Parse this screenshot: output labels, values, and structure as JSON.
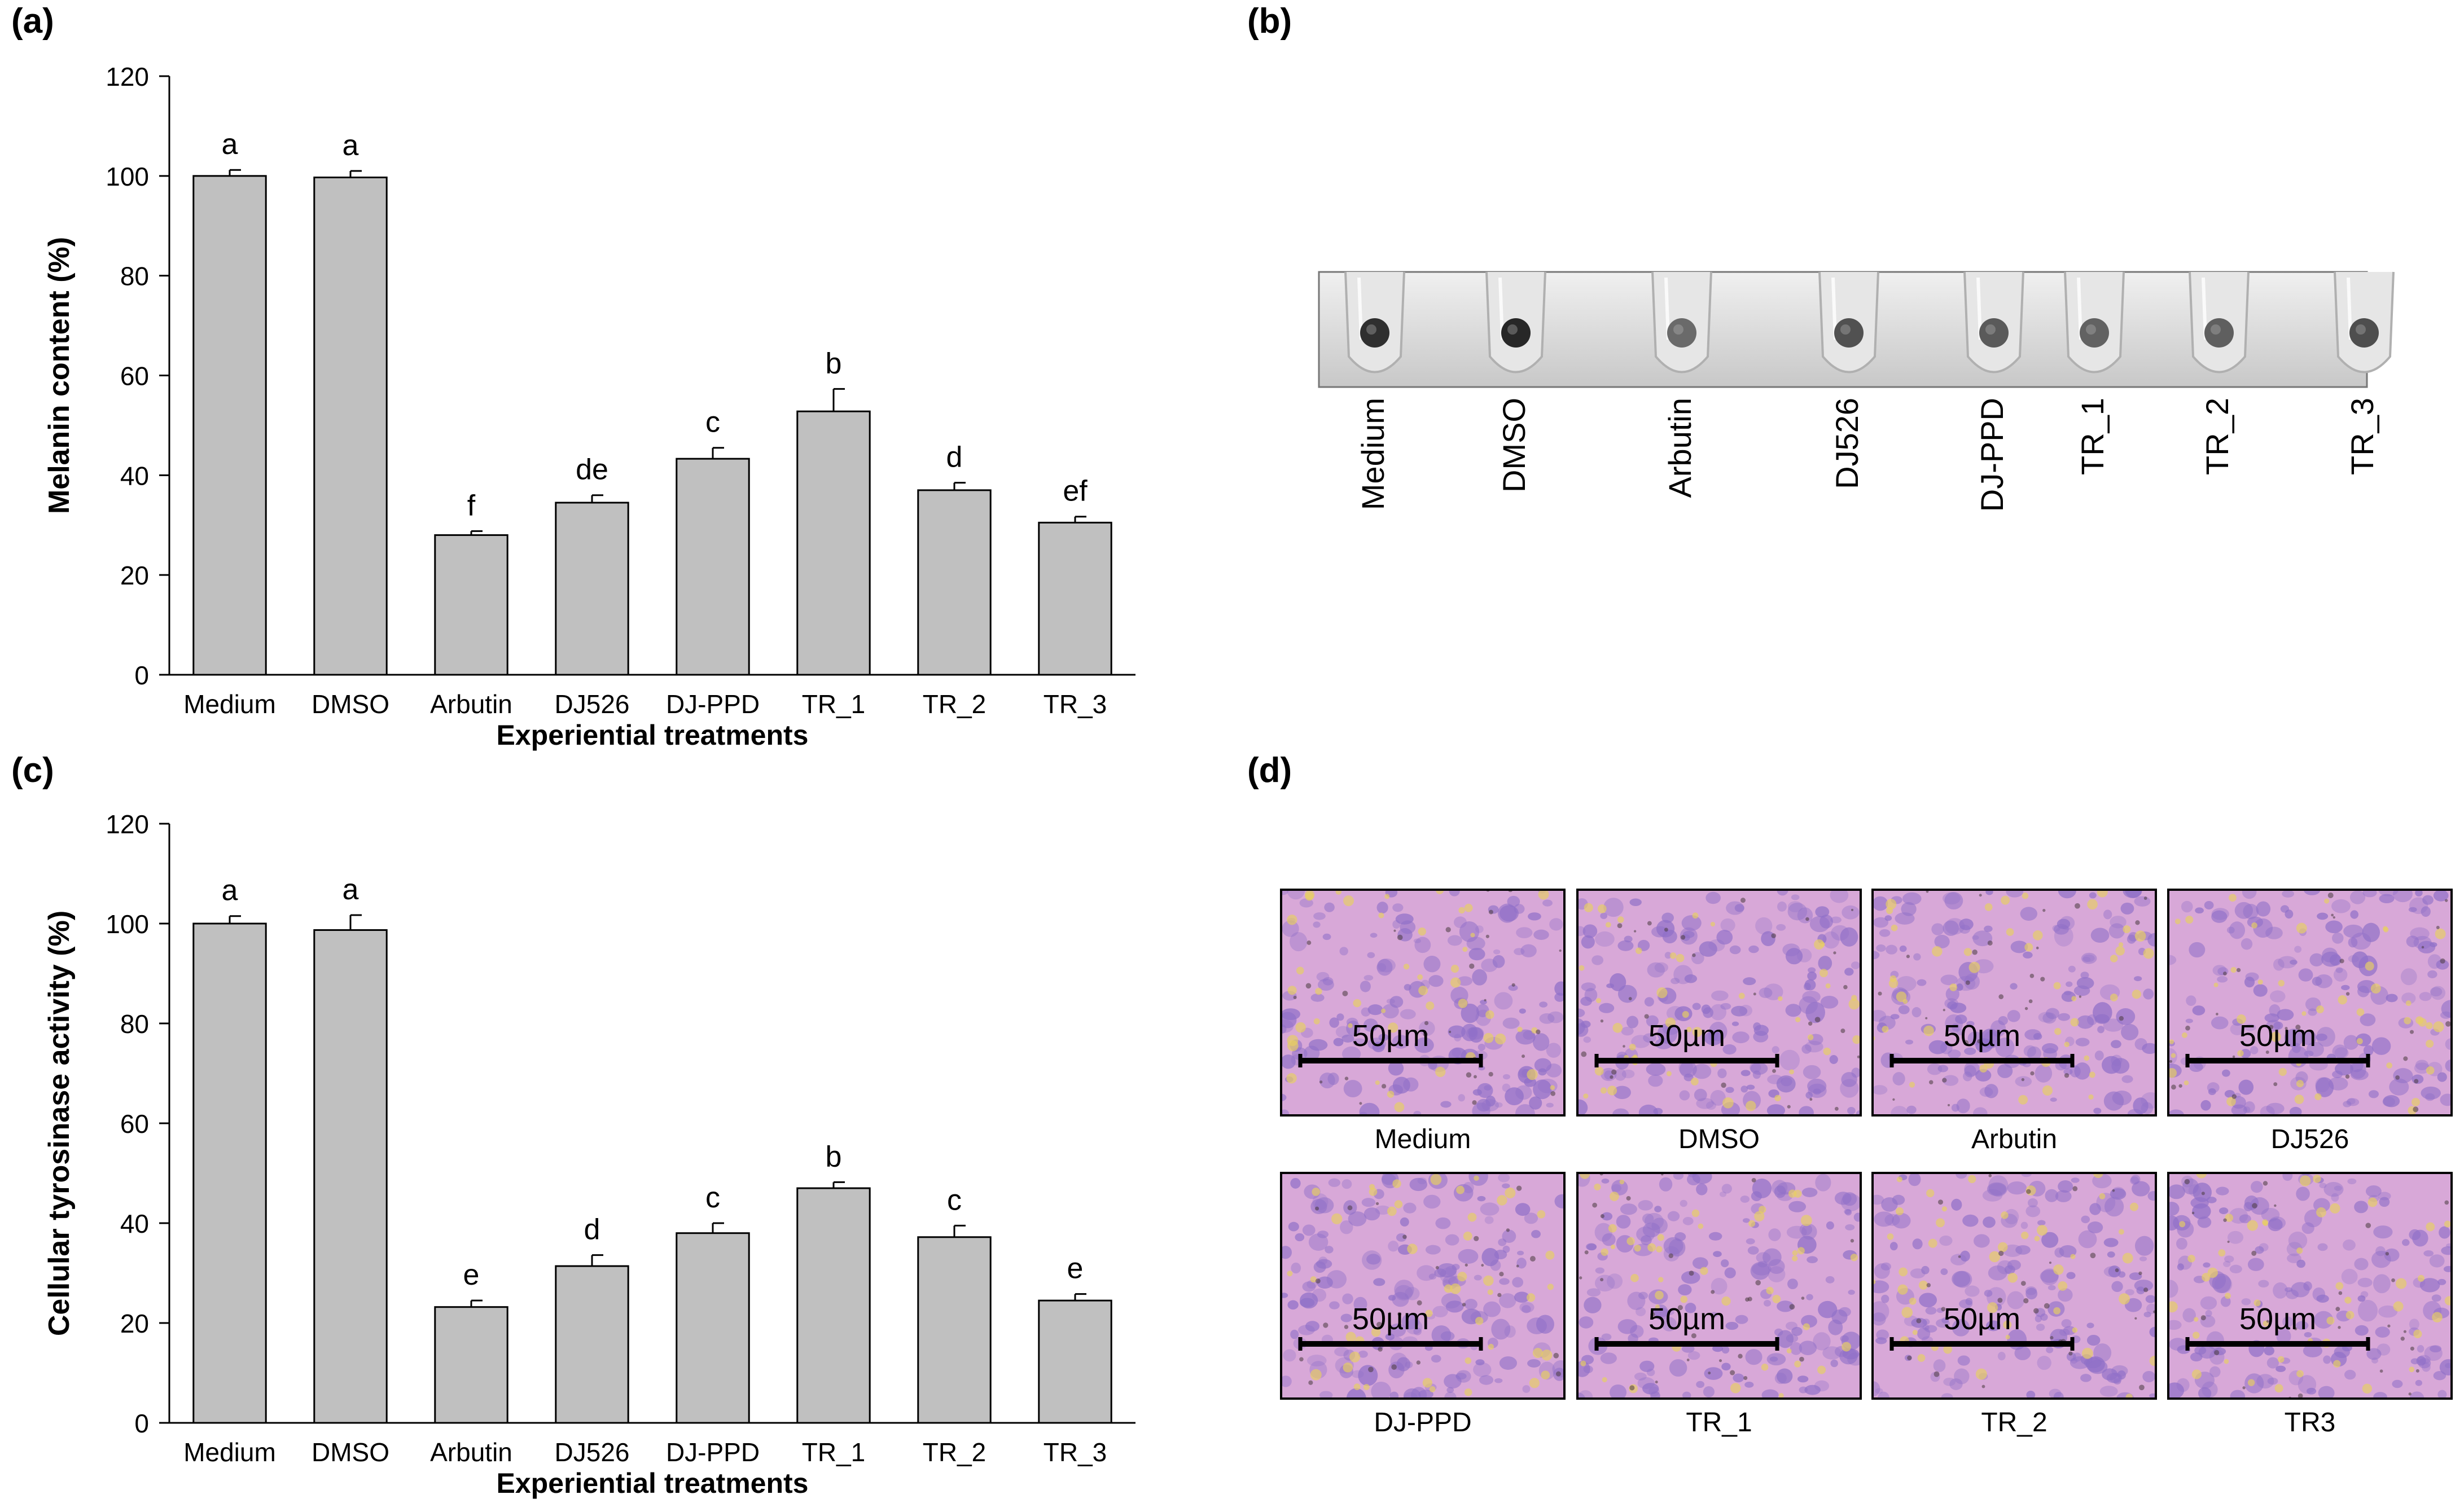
{
  "panels": {
    "a": {
      "label": "(a)"
    },
    "b": {
      "label": "(b)"
    },
    "c": {
      "label": "(c)"
    },
    "d": {
      "label": "(d)"
    }
  },
  "chart_data": [
    {
      "id": "a",
      "type": "bar",
      "categories": [
        "Medium",
        "DMSO",
        "Arbutin",
        "DJ526",
        "DJ-PPD",
        "TR_1",
        "TR_2",
        "TR_3"
      ],
      "values": [
        100,
        99.7,
        28,
        34.5,
        43.3,
        52.8,
        37,
        30.5
      ],
      "errors": [
        1.2,
        1.3,
        0.8,
        1.5,
        2.2,
        4.5,
        1.5,
        1.2
      ],
      "significance": [
        "a",
        "a",
        "f",
        "de",
        "c",
        "b",
        "d",
        "ef"
      ],
      "title": "",
      "xlabel": "Experiential treatments",
      "ylabel": "Melanin content (%)",
      "ylim": [
        0,
        120
      ],
      "yticks": [
        0,
        20,
        40,
        60,
        80,
        100,
        120
      ],
      "bar_color": "#c0c0c0"
    },
    {
      "id": "c",
      "type": "bar",
      "categories": [
        "Medium",
        "DMSO",
        "Arbutin",
        "DJ526",
        "DJ-PPD",
        "TR_1",
        "TR_2",
        "TR_3"
      ],
      "values": [
        100,
        98.7,
        23.2,
        31.4,
        38,
        47,
        37.2,
        24.5
      ],
      "errors": [
        1.5,
        3,
        1.3,
        2.2,
        2,
        1.2,
        2.3,
        1.3
      ],
      "significance": [
        "a",
        "a",
        "e",
        "d",
        "c",
        "b",
        "c",
        "e"
      ],
      "title": "",
      "xlabel": "Experiential treatments",
      "ylabel": "Cellular tyrosinase activity (%)",
      "ylim": [
        0,
        120
      ],
      "yticks": [
        0,
        20,
        40,
        60,
        80,
        100,
        120
      ],
      "bar_color": "#c0c0c0"
    }
  ],
  "tubes": {
    "labels": [
      "Medium",
      "DMSO",
      "Arbutin",
      "DJ526",
      "DJ-PPD",
      "TR_1",
      "TR_2",
      "TR_3"
    ],
    "pellet_darkness": [
      0.9,
      0.95,
      0.55,
      0.7,
      0.65,
      0.6,
      0.62,
      0.72
    ],
    "background": "#dcdcdc"
  },
  "micrographs": {
    "scale_bar": "50µm",
    "labels": [
      "Medium",
      "DMSO",
      "Arbutin",
      "DJ526",
      "DJ-PPD",
      "TR_1",
      "TR_2",
      "TR3"
    ],
    "base_color": "#d8a8d8",
    "cell_color": "#9070c8",
    "yellow_color": "#e8d060"
  }
}
